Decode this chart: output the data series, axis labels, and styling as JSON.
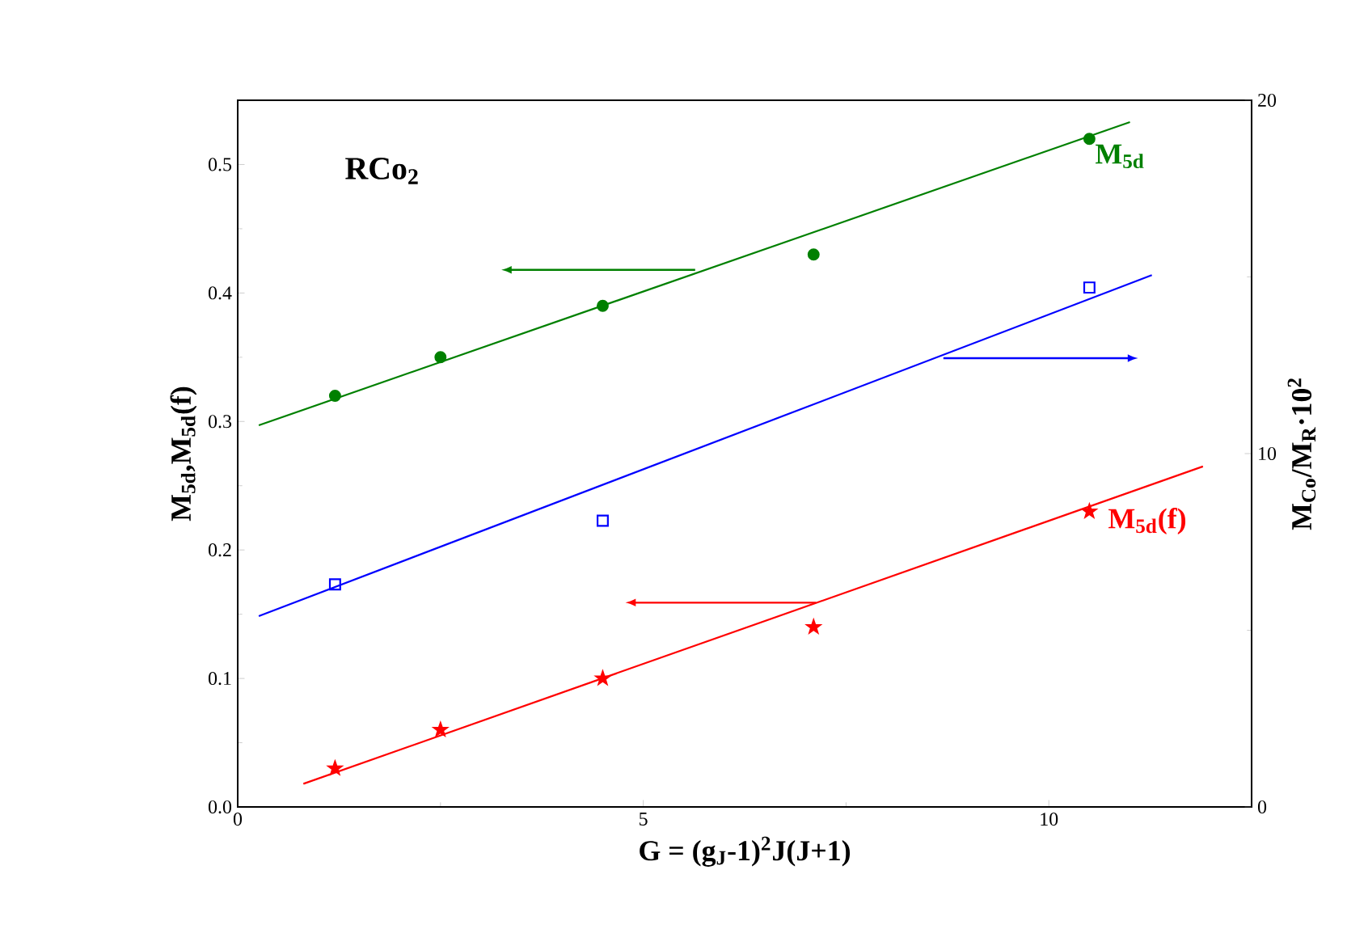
{
  "chart_data": {
    "type": "scatter",
    "xlabel": "G = (g$_{J}$-1)$^{2}$J(J+1)",
    "ylabel": "M$_{5d}$,M$_{5d}$(f)",
    "y2label": "M$_{Co}$/M$_{R}$·10$^{2}$",
    "annotations": [
      "RCo$_{2}$"
    ],
    "xlim": [
      0,
      12.5
    ],
    "xticks": [
      0,
      5,
      10
    ],
    "ylim": [
      0,
      0.55
    ],
    "yticks": [
      {
        "value": 0,
        "label": "0.0"
      },
      0.1,
      0.2,
      0.3,
      0.4,
      0.5
    ],
    "y2lim": [
      0,
      20
    ],
    "y2ticks": [
      0,
      10,
      20
    ],
    "grid": false,
    "series": [
      {
        "name": "M$_{5d}$",
        "color": "#008000",
        "marker": "circle",
        "x": [
          1.2,
          2.5,
          4.5,
          7.1,
          10.5
        ],
        "values": [
          0.32,
          0.35,
          0.39,
          0.43,
          0.52
        ]
      },
      {
        "type": "line",
        "color": "#008000",
        "marker": "none",
        "x": [
          0.26,
          11.0
        ],
        "values": [
          0.297,
          0.533
        ]
      },
      {
        "color": "#0000ff",
        "marker": "square",
        "axis": "y2",
        "x": [
          1.2,
          4.5,
          10.5
        ],
        "values": [
          6.3,
          8.1,
          14.7
        ]
      },
      {
        "type": "line",
        "color": "#0000ff",
        "marker": "none",
        "axis": "y2",
        "x": [
          0.26,
          11.27
        ],
        "values": [
          5.4,
          15.05
        ]
      },
      {
        "name": "M$_{5d}$(f)",
        "color": "#ff0000",
        "marker": "star",
        "x": [
          1.2,
          2.5,
          4.5,
          7.1,
          10.5
        ],
        "values": [
          0.03,
          0.06,
          0.1,
          0.14,
          0.23
        ]
      },
      {
        "type": "line",
        "color": "#ff0000",
        "marker": "none",
        "x": [
          0.81,
          11.9
        ],
        "values": [
          0.018,
          0.265
        ]
      }
    ]
  }
}
